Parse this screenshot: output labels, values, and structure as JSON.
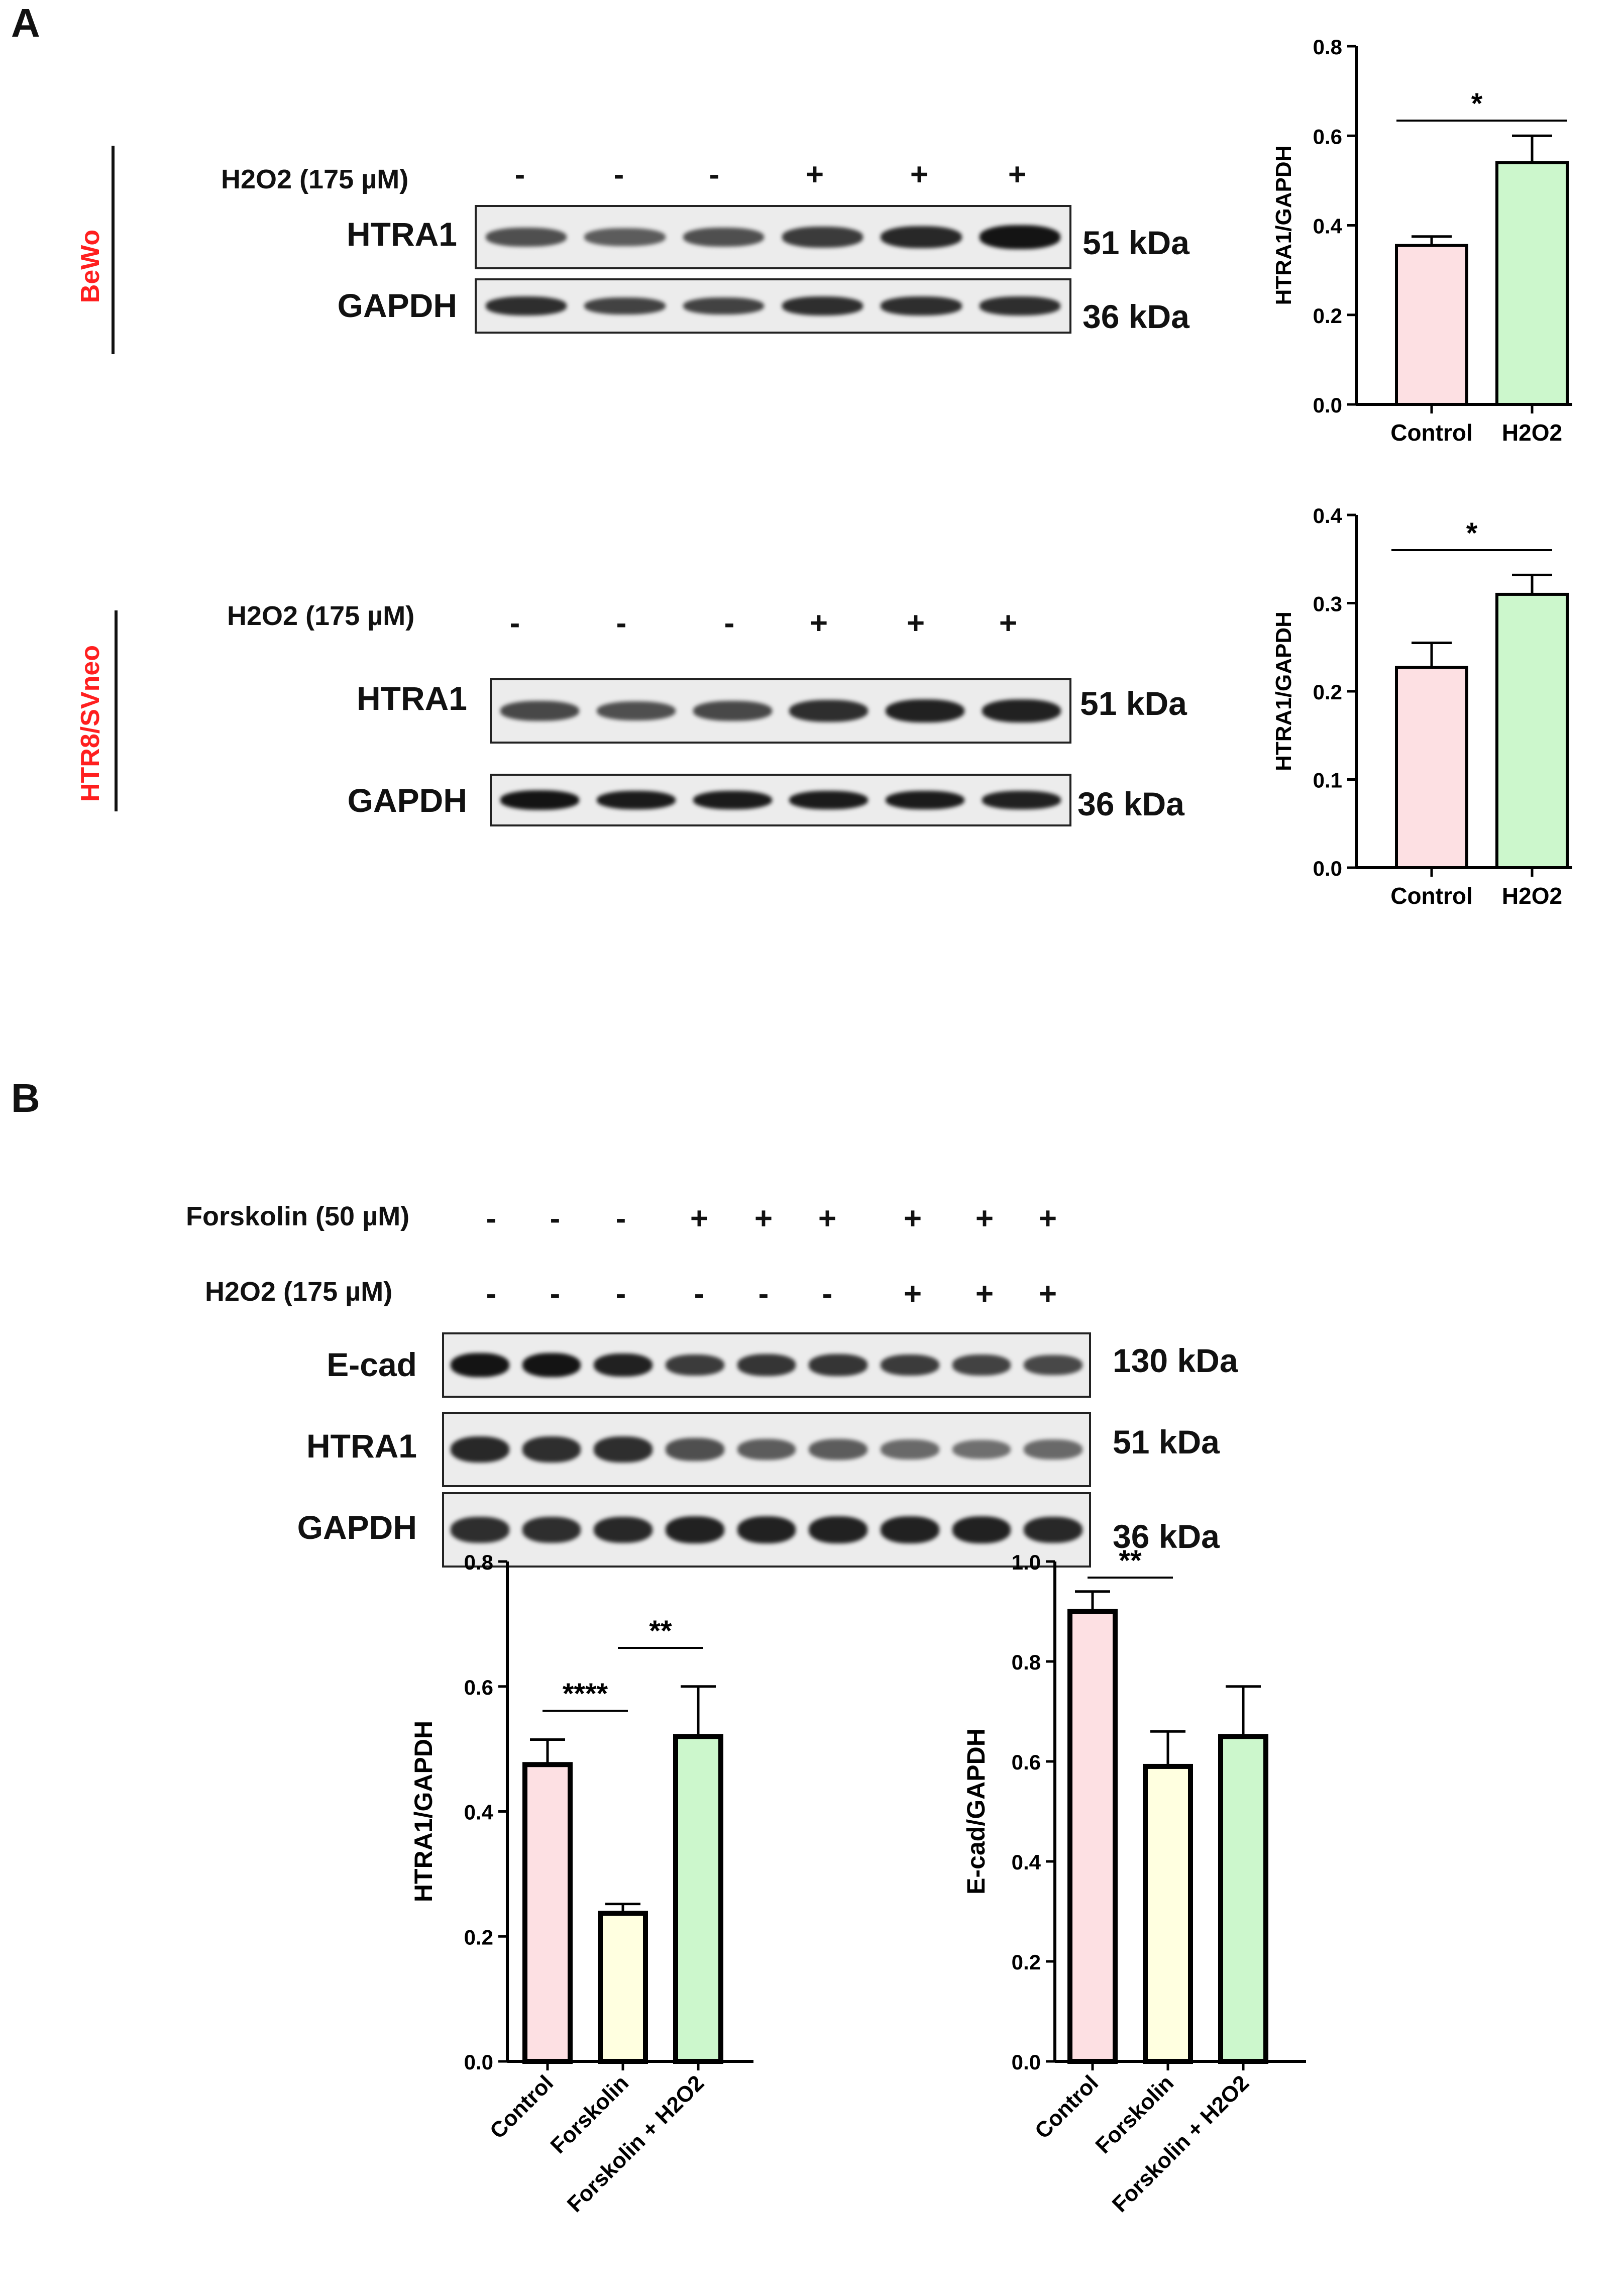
{
  "panels": {
    "a": {
      "letter": "A",
      "bewo": {
        "cell_line": "BeWo",
        "treatment": {
          "label": "H2O2 (175 µM)",
          "signs": [
            "-",
            "-",
            "-",
            "+",
            "+",
            "+"
          ]
        },
        "bands": [
          {
            "name": "HTRA1",
            "kda": "51 kDa",
            "intensities": [
              0.55,
              0.45,
              0.55,
              0.7,
              0.85,
              1.0
            ]
          },
          {
            "name": "GAPDH",
            "kda": "36 kDa",
            "intensities": [
              0.8,
              0.65,
              0.65,
              0.8,
              0.8,
              0.8
            ]
          }
        ]
      },
      "htr8": {
        "cell_line": "HTR8/SVneo",
        "treatment": {
          "label": "H2O2 (175 µM)",
          "signs": [
            "-",
            "-",
            "-",
            "+",
            "+",
            "+"
          ]
        },
        "bands": [
          {
            "name": "HTRA1",
            "kda": "51 kDa",
            "intensities": [
              0.6,
              0.55,
              0.6,
              0.8,
              0.9,
              0.9
            ]
          },
          {
            "name": "GAPDH",
            "kda": "36 kDa",
            "intensities": [
              1.0,
              0.95,
              0.95,
              0.95,
              0.95,
              0.9
            ]
          }
        ]
      }
    },
    "b": {
      "letter": "B",
      "treatments": [
        {
          "label": "Forskolin (50 µM)",
          "signs": [
            "-",
            "-",
            "-",
            "+",
            "+",
            "+",
            "+",
            "+",
            "+"
          ]
        },
        {
          "label": "H2O2 (175 µM)",
          "signs": [
            "-",
            "-",
            "-",
            "-",
            "-",
            "-",
            "+",
            "+",
            "+"
          ]
        }
      ],
      "bands": [
        {
          "name": "E-cad",
          "kda": "130 kDa",
          "intensities": [
            1.0,
            1.0,
            0.9,
            0.7,
            0.75,
            0.75,
            0.7,
            0.65,
            0.6
          ]
        },
        {
          "name": "HTRA1",
          "kda": "51 kDa",
          "intensities": [
            0.85,
            0.8,
            0.8,
            0.55,
            0.45,
            0.45,
            0.35,
            0.3,
            0.35
          ]
        },
        {
          "name": "GAPDH",
          "kda": "36 kDa",
          "intensities": [
            0.8,
            0.8,
            0.85,
            0.9,
            0.9,
            0.9,
            0.9,
            0.9,
            0.85
          ]
        }
      ]
    }
  },
  "chart_data": [
    {
      "type": "bar",
      "categories": [
        "Control",
        "H2O2"
      ],
      "values": [
        0.355,
        0.54
      ],
      "errors": [
        0.02,
        0.06
      ],
      "colors": [
        "#fde0e3",
        "#ccf7cc"
      ],
      "ylabel": "HTRA1/GAPDH",
      "ylim": [
        0,
        0.8
      ],
      "yticks": [
        "0.0",
        "0.2",
        "0.4",
        "0.6",
        "0.8"
      ],
      "significance": [
        {
          "from": "Control",
          "to": "H2O2",
          "label": "*"
        }
      ],
      "x_tick_rotation": "none"
    },
    {
      "type": "bar",
      "categories": [
        "Control",
        "H2O2"
      ],
      "values": [
        0.227,
        0.31
      ],
      "errors": [
        0.028,
        0.022
      ],
      "colors": [
        "#fde0e3",
        "#ccf7cc"
      ],
      "ylabel": "HTRA1/GAPDH",
      "ylim": [
        0,
        0.4
      ],
      "yticks": [
        "0.0",
        "0.1",
        "0.2",
        "0.3",
        "0.4"
      ],
      "significance": [
        {
          "from": "Control",
          "to": "H2O2",
          "label": "*"
        }
      ],
      "x_tick_rotation": "none"
    },
    {
      "type": "bar",
      "categories": [
        "Control",
        "Forskolin",
        "Forskolin + H2O2"
      ],
      "values": [
        0.475,
        0.237,
        0.52
      ],
      "errors": [
        0.04,
        0.015,
        0.08
      ],
      "colors": [
        "#fde0e3",
        "#ffffe0",
        "#ccf7cc"
      ],
      "ylabel": "HTRA1/GAPDH",
      "ylim": [
        0,
        0.8
      ],
      "yticks": [
        "0.0",
        "0.2",
        "0.4",
        "0.6",
        "0.8"
      ],
      "significance": [
        {
          "from": "Control",
          "to": "Forskolin",
          "label": "****"
        },
        {
          "from": "Forskolin",
          "to": "Forskolin + H2O2",
          "label": "**"
        }
      ],
      "x_tick_rotation": "45deg"
    },
    {
      "type": "bar",
      "categories": [
        "Control",
        "Forskolin",
        "Forskolin + H2O2"
      ],
      "values": [
        0.9,
        0.59,
        0.65
      ],
      "errors": [
        0.04,
        0.07,
        0.1
      ],
      "colors": [
        "#fde0e3",
        "#ffffe0",
        "#ccf7cc"
      ],
      "ylabel": "E-cad/GAPDH",
      "ylim": [
        0,
        1.0
      ],
      "yticks": [
        "0.0",
        "0.2",
        "0.4",
        "0.6",
        "0.8",
        "1.0"
      ],
      "significance": [
        {
          "from": "Control",
          "to": "Forskolin",
          "label": "**"
        }
      ],
      "x_tick_rotation": "45deg"
    }
  ]
}
